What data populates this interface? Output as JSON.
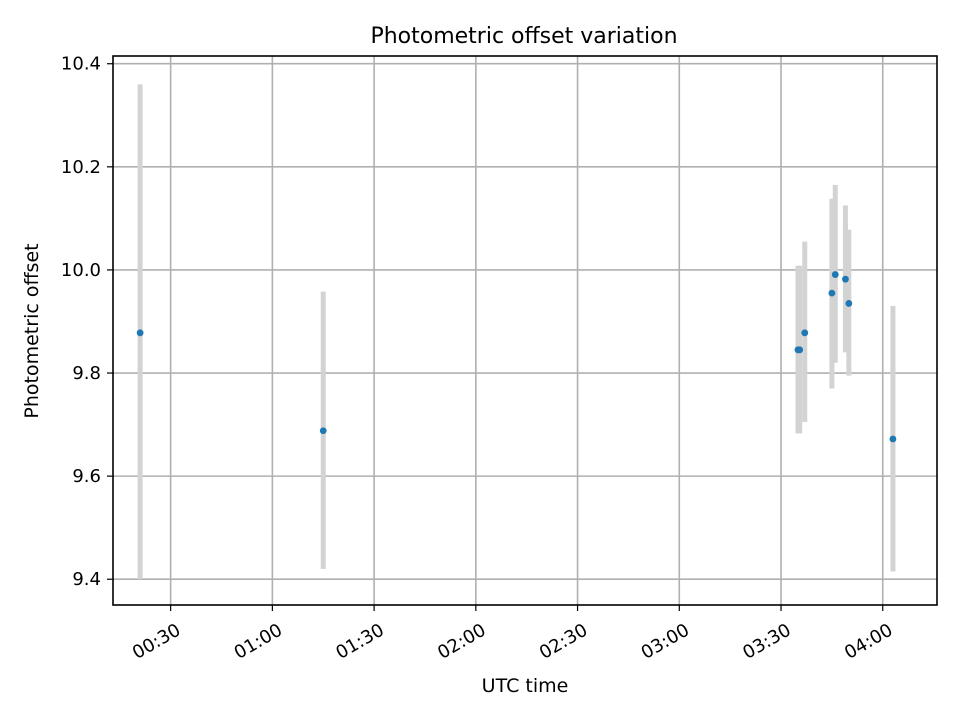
{
  "chart_data": {
    "type": "scatter",
    "title": "Photometric offset variation",
    "xlabel": "UTC time",
    "ylabel": "Photometric offset",
    "xlim": [
      "00:13:00",
      "04:16:00"
    ],
    "ylim": [
      9.35,
      10.415
    ],
    "x_ticks": [
      "00:30",
      "01:00",
      "01:30",
      "02:00",
      "02:30",
      "03:00",
      "03:30",
      "04:00"
    ],
    "y_ticks": [
      "9.4",
      "9.6",
      "9.8",
      "10.0",
      "10.2",
      "10.4"
    ],
    "grid": true,
    "marker_color": "#1f77b4",
    "errorbar_color": "#d3d3d3",
    "points": [
      {
        "x": "00:21:00",
        "y": 9.878,
        "yerr_low": 9.4,
        "yerr_high": 10.36
      },
      {
        "x": "01:15:00",
        "y": 9.688,
        "yerr_low": 9.42,
        "yerr_high": 9.958
      },
      {
        "x": "03:35:00",
        "y": 9.845,
        "yerr_low": 9.683,
        "yerr_high": 10.008
      },
      {
        "x": "03:35:30",
        "y": 9.845,
        "yerr_low": 9.683,
        "yerr_high": 10.008
      },
      {
        "x": "03:37:00",
        "y": 9.878,
        "yerr_low": 9.705,
        "yerr_high": 10.055
      },
      {
        "x": "03:45:00",
        "y": 9.955,
        "yerr_low": 9.77,
        "yerr_high": 10.138
      },
      {
        "x": "03:46:00",
        "y": 9.991,
        "yerr_low": 9.82,
        "yerr_high": 10.165
      },
      {
        "x": "03:49:00",
        "y": 9.982,
        "yerr_low": 9.84,
        "yerr_high": 10.125
      },
      {
        "x": "03:50:00",
        "y": 9.935,
        "yerr_low": 9.795,
        "yerr_high": 10.078
      },
      {
        "x": "04:03:00",
        "y": 9.672,
        "yerr_low": 9.415,
        "yerr_high": 9.93
      }
    ]
  }
}
